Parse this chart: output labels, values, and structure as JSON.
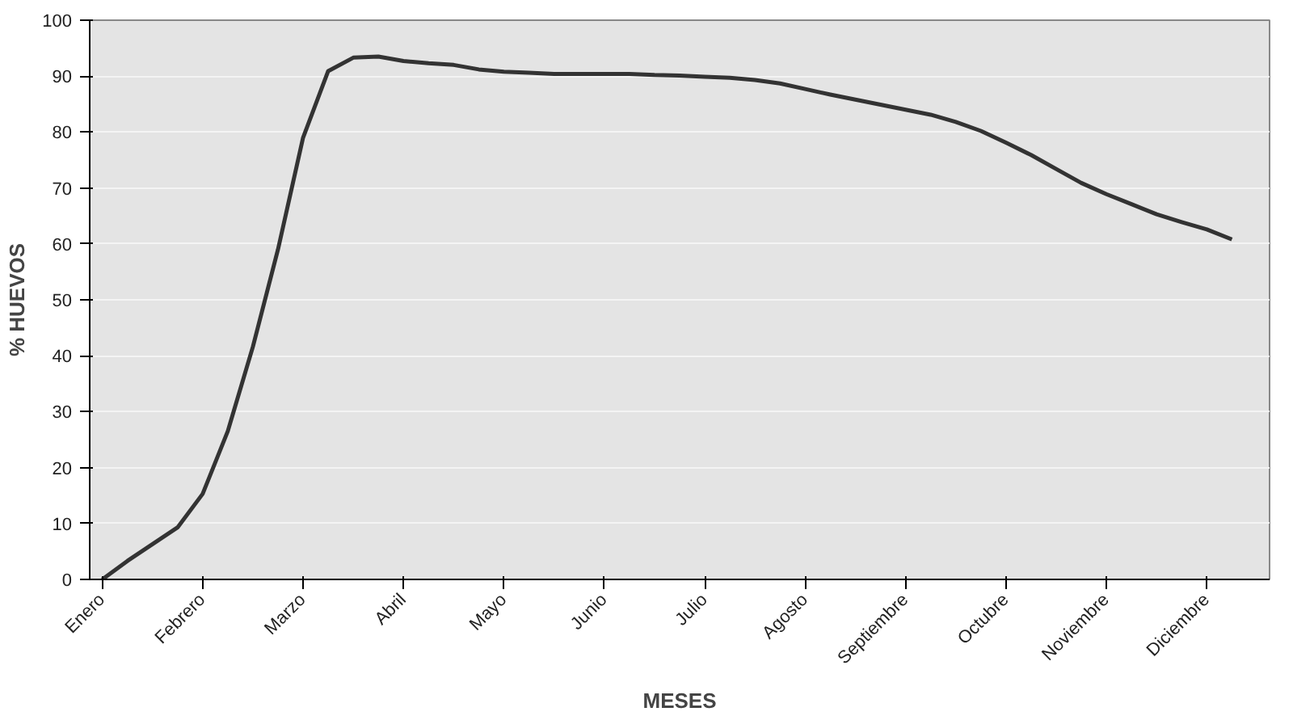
{
  "chart_data": {
    "type": "line",
    "xlabel": "MESES",
    "ylabel": "% HUEVOS",
    "categories": [
      "Enero",
      null,
      null,
      null,
      "Febrero",
      null,
      null,
      null,
      "Marzo",
      null,
      null,
      null,
      "Abril",
      null,
      null,
      null,
      "Mayo",
      null,
      null,
      null,
      "Junio",
      null,
      null,
      null,
      "Julio",
      null,
      null,
      null,
      "Agosto",
      null,
      null,
      null,
      "Septiembre",
      null,
      null,
      null,
      "Octubre",
      null,
      null,
      null,
      "Noviembre",
      null,
      null,
      null,
      "Diciembre",
      null,
      null
    ],
    "series": [
      {
        "color": "#333333",
        "values": [
          0,
          3.3,
          6.3,
          9.3,
          15.3,
          26.5,
          41.6,
          59,
          79,
          90.9,
          93.3,
          93.5,
          92.7,
          92.3,
          92,
          91.2,
          90.8,
          90.6,
          90.4,
          90.4,
          90.4,
          90.4,
          90.2,
          90.1,
          89.9,
          89.7,
          89.3,
          88.7,
          87.7,
          86.7,
          85.8,
          84.9,
          84,
          83.1,
          81.8,
          80.2,
          78.1,
          75.9,
          73.4,
          70.9,
          68.9,
          67.1,
          65.3,
          63.9,
          62.6,
          60.8,
          null
        ]
      }
    ],
    "ylim": [
      0,
      100
    ],
    "yticks": [
      0,
      10,
      20,
      30,
      40,
      50,
      60,
      70,
      80,
      90,
      100
    ],
    "grid": "y",
    "line_style": "solid",
    "marker": "none"
  }
}
